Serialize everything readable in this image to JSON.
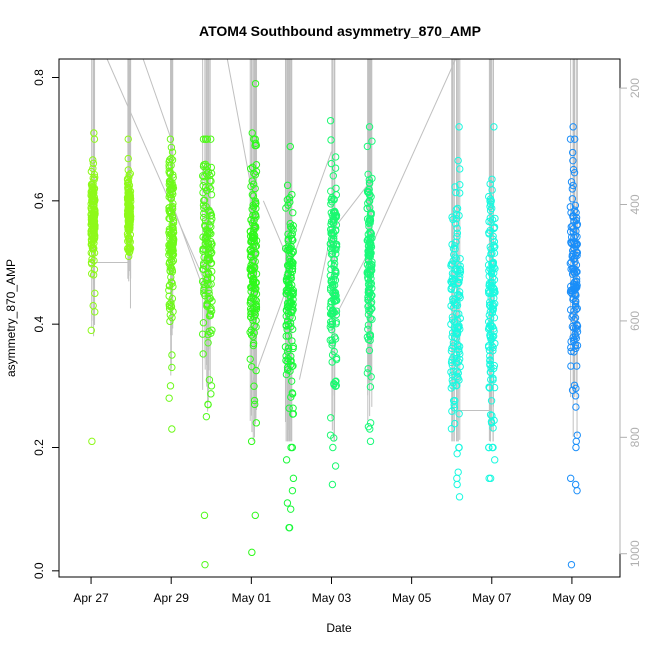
{
  "chart_data": {
    "type": "scatter",
    "title": "ATOM4 Southbound asymmetry_870_AMP",
    "xlabel": "Date",
    "ylabel": "asymmetry_870_AMP",
    "x_ticks": [
      "Apr 27",
      "Apr 29",
      "May 01",
      "May 03",
      "May 05",
      "May 07",
      "May 09"
    ],
    "x_tick_days": [
      0,
      2,
      4,
      6,
      8,
      10,
      12
    ],
    "xlim_days": [
      -0.8,
      13.2
    ],
    "y_ticks": [
      0.0,
      0.2,
      0.4,
      0.6,
      0.8
    ],
    "ylim": [
      -0.01,
      0.83
    ],
    "y2_label": "",
    "y2_ticks": [
      200,
      400,
      600,
      800,
      1000
    ],
    "y2lim_reversed": [
      1040,
      150
    ],
    "series_clusters": [
      {
        "day": 0.05,
        "spread": 0.05,
        "y_center": 0.57,
        "y_spread": 0.07,
        "color": "#8ef91a",
        "extra": [
          0.21,
          0.43,
          0.42,
          0.39,
          0.71,
          0.7,
          0.5,
          0.48,
          0.45
        ]
      },
      {
        "day": 0.95,
        "spread": 0.04,
        "y_center": 0.58,
        "y_spread": 0.05,
        "color": "#8ef91a",
        "extra": [
          0.7,
          0.65,
          0.52,
          0.51
        ]
      },
      {
        "day": 2.0,
        "spread": 0.06,
        "y_center": 0.55,
        "y_spread": 0.12,
        "color": "#6ef91a",
        "extra": [
          0.3,
          0.35,
          0.28,
          0.23
        ]
      },
      {
        "day": 2.9,
        "spread": 0.12,
        "y_center": 0.52,
        "y_spread": 0.16,
        "color": "#50f91a",
        "extra": [
          0.01,
          0.09,
          0.25,
          0.27,
          0.3
        ]
      },
      {
        "day": 4.05,
        "spread": 0.08,
        "y_center": 0.48,
        "y_spread": 0.16,
        "color": "#2ef91a",
        "extra": [
          0.79,
          0.71,
          0.03,
          0.09,
          0.21,
          0.24,
          0.27
        ]
      },
      {
        "day": 4.95,
        "spread": 0.1,
        "y_center": 0.45,
        "y_spread": 0.17,
        "color": "#1af93a",
        "extra": [
          0.07,
          0.07,
          0.1,
          0.11,
          0.13,
          0.15,
          0.18,
          0.2
        ]
      },
      {
        "day": 6.05,
        "spread": 0.08,
        "y_center": 0.48,
        "y_spread": 0.17,
        "color": "#1af970",
        "extra": [
          0.73,
          0.14,
          0.17,
          0.2,
          0.22
        ]
      },
      {
        "day": 6.95,
        "spread": 0.06,
        "y_center": 0.5,
        "y_spread": 0.15,
        "color": "#1af97a",
        "extra": [
          0.72,
          0.24,
          0.21,
          0.23
        ]
      },
      {
        "day": 9.1,
        "spread": 0.12,
        "y_center": 0.42,
        "y_spread": 0.17,
        "color": "#1af9e0",
        "extra": [
          0.72,
          0.12,
          0.14,
          0.15,
          0.16,
          0.19,
          0.2
        ]
      },
      {
        "day": 10.0,
        "spread": 0.08,
        "y_center": 0.44,
        "y_spread": 0.17,
        "color": "#1af9e0",
        "extra": [
          0.72,
          0.15,
          0.15,
          0.18,
          0.2
        ]
      },
      {
        "day": 12.05,
        "spread": 0.09,
        "y_center": 0.48,
        "y_spread": 0.15,
        "color": "#1a8ef9",
        "extra": [
          0.72,
          0.01,
          0.13,
          0.14,
          0.15,
          0.2,
          0.22,
          0.21
        ]
      }
    ],
    "point_color_note": "colored open circles, hue shifts from yellow-green to blue over time",
    "line_color": "#c0c0c0",
    "grid": false,
    "legend": "none"
  }
}
